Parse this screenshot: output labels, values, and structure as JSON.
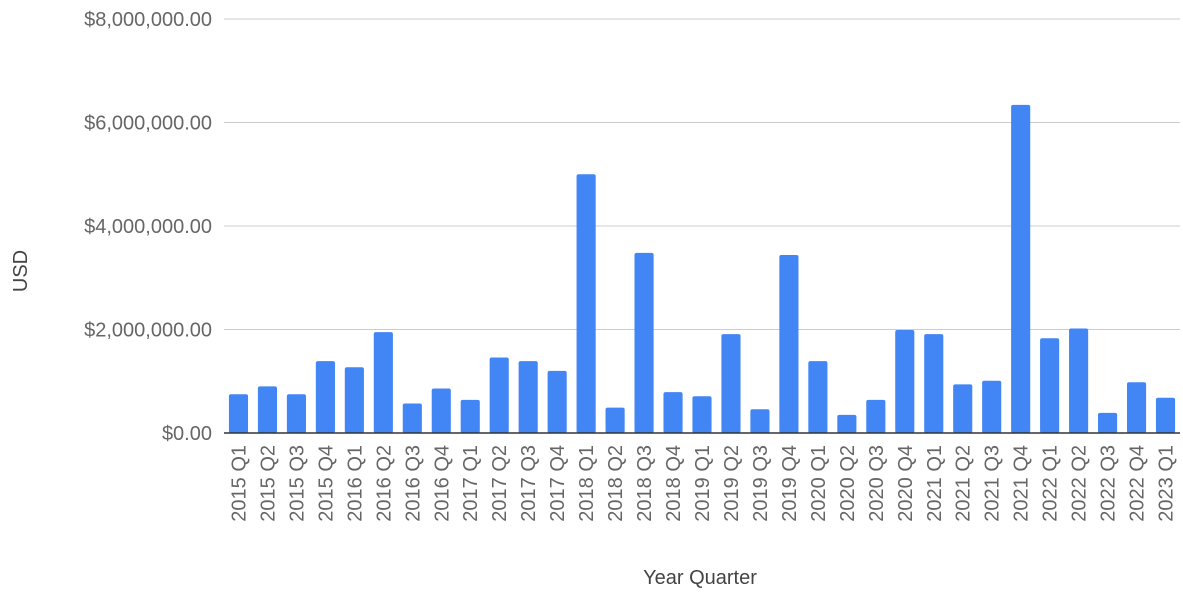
{
  "chart_data": {
    "type": "bar",
    "xlabel": "Year Quarter",
    "ylabel": "USD",
    "ylim": [
      0,
      8000000
    ],
    "yticks": [
      {
        "value": 0,
        "label": "$0.00"
      },
      {
        "value": 2000000,
        "label": "$2,000,000.00"
      },
      {
        "value": 4000000,
        "label": "$4,000,000.00"
      },
      {
        "value": 6000000,
        "label": "$6,000,000.00"
      },
      {
        "value": 8000000,
        "label": "$8,000,000.00"
      }
    ],
    "grid": true,
    "legend": "none",
    "bar_color": "#4285f4",
    "categories": [
      "2015 Q1",
      "2015 Q2",
      "2015 Q3",
      "2015 Q4",
      "2016 Q1",
      "2016 Q2",
      "2016 Q3",
      "2016 Q4",
      "2017 Q1",
      "2017 Q2",
      "2017 Q3",
      "2017 Q4",
      "2018 Q1",
      "2018 Q2",
      "2018 Q3",
      "2018 Q4",
      "2019 Q1",
      "2019 Q2",
      "2019 Q3",
      "2019 Q4",
      "2020 Q1",
      "2020 Q2",
      "2020 Q3",
      "2020 Q4",
      "2021 Q1",
      "2021 Q2",
      "2021 Q3",
      "2021 Q4",
      "2022 Q1",
      "2022 Q2",
      "2022 Q3",
      "2022 Q4",
      "2023 Q1"
    ],
    "values": [
      750000,
      900000,
      750000,
      1390000,
      1270000,
      1950000,
      570000,
      860000,
      640000,
      1460000,
      1390000,
      1200000,
      5000000,
      490000,
      3480000,
      790000,
      710000,
      1910000,
      460000,
      3440000,
      1390000,
      350000,
      640000,
      1990000,
      1910000,
      940000,
      1010000,
      6340000,
      1830000,
      2020000,
      390000,
      980000,
      680000
    ]
  }
}
